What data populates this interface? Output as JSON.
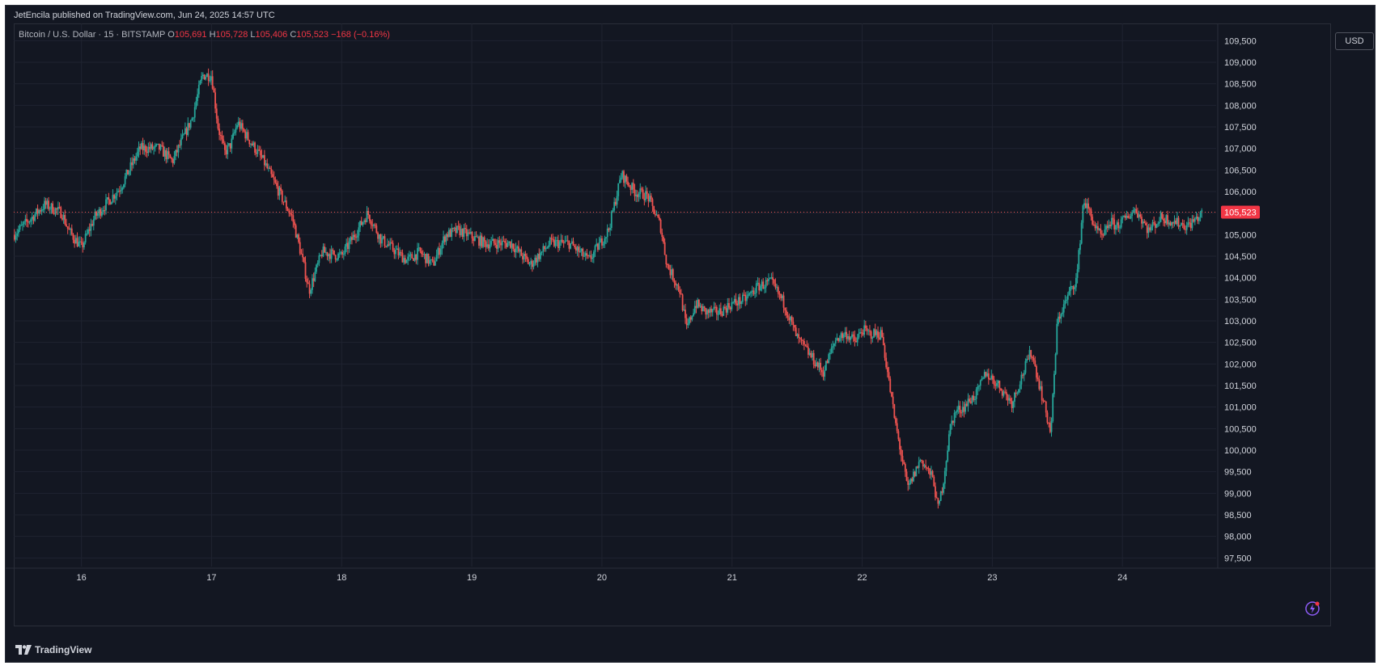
{
  "header": {
    "publish_line": "JetEncila published on TradingView.com, Jun 24, 2025 14:57 UTC"
  },
  "symbol": {
    "name": "Bitcoin / U.S. Dollar · 15 · BITSTAMP",
    "open_label": "O",
    "open_value": "105,691",
    "high_label": "H",
    "high_value": "105,728",
    "low_label": "L",
    "low_value": "105,406",
    "close_label": "C",
    "close_value": "105,523",
    "change": "−168 (−0.16%)"
  },
  "toolbar": {
    "currency_label": "USD"
  },
  "footer": {
    "brand": "TradingView"
  },
  "colors": {
    "background": "#131722",
    "grid": "#1f2330",
    "up": "#26a69a",
    "down": "#ef5350",
    "axis_text": "#d1d4dc",
    "last_price_bg": "#f23645"
  },
  "icons": {
    "brand_logo": "tradingview-logo-icon",
    "flash": "lightning-flash-icon"
  },
  "chart_data": {
    "type": "candlestick",
    "title": "Bitcoin / U.S. Dollar · 15 · BITSTAMP",
    "interval": "15",
    "y_ticks": [
      "109,500",
      "109,000",
      "108,500",
      "108,000",
      "107,500",
      "107,000",
      "106,500",
      "106,000",
      "105,500",
      "105,000",
      "104,500",
      "104,000",
      "103,500",
      "103,000",
      "102,500",
      "102,000",
      "101,500",
      "101,000",
      "100,500",
      "100,000",
      "99,500",
      "99,000",
      "98,500",
      "98,000",
      "97,500"
    ],
    "y_tick_values": [
      109500,
      109000,
      108500,
      108000,
      107500,
      107000,
      106500,
      106000,
      105500,
      105000,
      104500,
      104000,
      103500,
      103000,
      102500,
      102000,
      101500,
      101000,
      100500,
      100000,
      99500,
      99000,
      98500,
      98000,
      97500
    ],
    "ylim": [
      97300,
      109900
    ],
    "x_ticks": [
      "16",
      "17",
      "18",
      "19",
      "20",
      "21",
      "22",
      "23",
      "24"
    ],
    "x_tick_values": [
      1,
      2,
      3,
      4,
      5,
      6,
      7,
      8,
      9
    ],
    "xlim": [
      0.48,
      9.72
    ],
    "last_price": 105523,
    "last_price_label": "105,523",
    "grid": true,
    "path_x": [
      0.48,
      0.62,
      0.72,
      0.85,
      0.9,
      1.0,
      1.1,
      1.3,
      1.45,
      1.6,
      1.7,
      1.85,
      1.93,
      2.0,
      2.05,
      2.1,
      2.15,
      2.2,
      2.4,
      2.55,
      2.62,
      2.7,
      2.75,
      2.85,
      3.0,
      3.1,
      3.2,
      3.3,
      3.5,
      3.6,
      3.7,
      3.8,
      3.9,
      4.1,
      4.3,
      4.45,
      4.6,
      4.75,
      4.9,
      5.05,
      5.15,
      5.25,
      5.35,
      5.45,
      5.5,
      5.6,
      5.65,
      5.72,
      5.8,
      5.9,
      6.0,
      6.1,
      6.2,
      6.3,
      6.4,
      6.5,
      6.6,
      6.7,
      6.8,
      6.88,
      6.95,
      7.0,
      7.05,
      7.15,
      7.25,
      7.35,
      7.45,
      7.55,
      7.58,
      7.62,
      7.68,
      7.72,
      7.78,
      7.84,
      7.88,
      7.95,
      8.05,
      8.15,
      8.3,
      8.45,
      8.5,
      8.6,
      8.65,
      8.7,
      8.75,
      8.8,
      8.85,
      8.9,
      8.95,
      9.0,
      9.1,
      9.2,
      9.3,
      9.4,
      9.5,
      9.62
    ],
    "path_y": [
      105000,
      105400,
      105700,
      105500,
      105100,
      104700,
      105400,
      106100,
      107000,
      107000,
      106700,
      107700,
      108700,
      108700,
      107500,
      106900,
      107100,
      107600,
      106700,
      105800,
      105400,
      104400,
      103700,
      104600,
      104500,
      105000,
      105500,
      104900,
      104400,
      104600,
      104300,
      105000,
      105100,
      104800,
      104800,
      104300,
      104800,
      104800,
      104400,
      105100,
      106400,
      106000,
      105900,
      105200,
      104300,
      103700,
      102800,
      103400,
      103200,
      103200,
      103400,
      103500,
      103800,
      103900,
      103400,
      102600,
      102200,
      101800,
      102600,
      102700,
      102500,
      102800,
      102700,
      102700,
      100700,
      99100,
      99800,
      99300,
      98600,
      99200,
      100600,
      100900,
      101000,
      101200,
      101300,
      101800,
      101500,
      101100,
      102300,
      100400,
      103000,
      103700,
      104000,
      105800,
      105500,
      105100,
      104900,
      105300,
      105200,
      105300,
      105600,
      105100,
      105400,
      105300,
      105200,
      105500
    ],
    "data_note": "Approximate price path; 15-minute candles are rendered by sampling this path."
  }
}
